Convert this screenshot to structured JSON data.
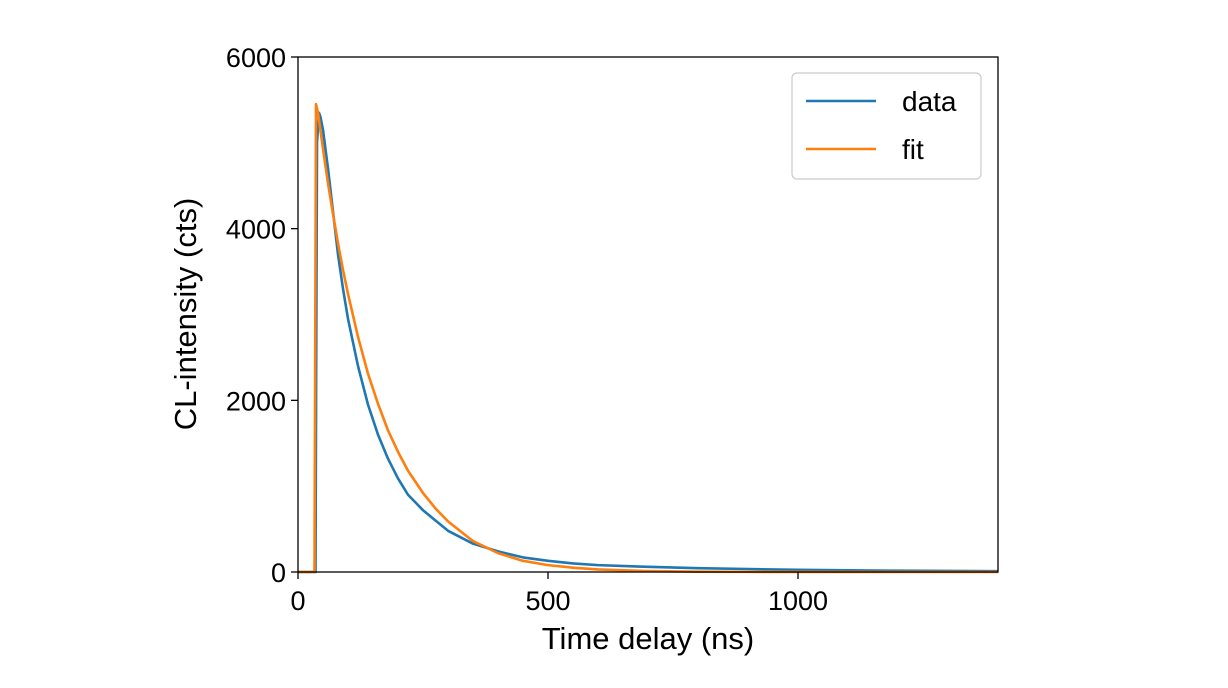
{
  "chart_data": {
    "type": "line",
    "title": "",
    "xlabel": "Time delay (ns)",
    "ylabel": "CL-intensity (cts)",
    "xlim": [
      0,
      1400
    ],
    "ylim": [
      0,
      6000
    ],
    "xticks": [
      0,
      500,
      1000
    ],
    "xtick_labels": [
      "0",
      "500",
      "1000"
    ],
    "yticks": [
      0,
      2000,
      4000,
      6000
    ],
    "ytick_labels": [
      "0",
      "2000",
      "4000",
      "6000"
    ],
    "grid": false,
    "legend_position": "top-right",
    "series": [
      {
        "name": "data",
        "color": "#1f77b4",
        "x": [
          0,
          30,
          35,
          38,
          42,
          45,
          50,
          60,
          70,
          80,
          90,
          100,
          120,
          140,
          160,
          180,
          200,
          220,
          250,
          275,
          300,
          350,
          400,
          450,
          500,
          550,
          600,
          700,
          800,
          900,
          1000,
          1100,
          1200,
          1300,
          1400
        ],
        "y": [
          0,
          0,
          0,
          5000,
          5350,
          5300,
          5150,
          4700,
          4200,
          3700,
          3300,
          2950,
          2400,
          1950,
          1600,
          1320,
          1090,
          900,
          720,
          600,
          480,
          330,
          240,
          170,
          130,
          100,
          80,
          60,
          45,
          35,
          25,
          20,
          15,
          12,
          10
        ]
      },
      {
        "name": "fit",
        "color": "#ff7f0e",
        "x": [
          0,
          30,
          33,
          36,
          40,
          50,
          60,
          70,
          80,
          90,
          100,
          120,
          140,
          160,
          180,
          200,
          220,
          250,
          275,
          300,
          350,
          400,
          450,
          500,
          550,
          600,
          700,
          800,
          900,
          1000,
          1100,
          1200,
          1300,
          1400
        ],
        "y": [
          0,
          0,
          0,
          5450,
          5350,
          4930,
          4530,
          4170,
          3830,
          3520,
          3240,
          2740,
          2310,
          1960,
          1650,
          1400,
          1180,
          920,
          740,
          590,
          360,
          220,
          130,
          80,
          50,
          30,
          11,
          4,
          1.5,
          0.5,
          0,
          0,
          0,
          0
        ]
      }
    ]
  }
}
